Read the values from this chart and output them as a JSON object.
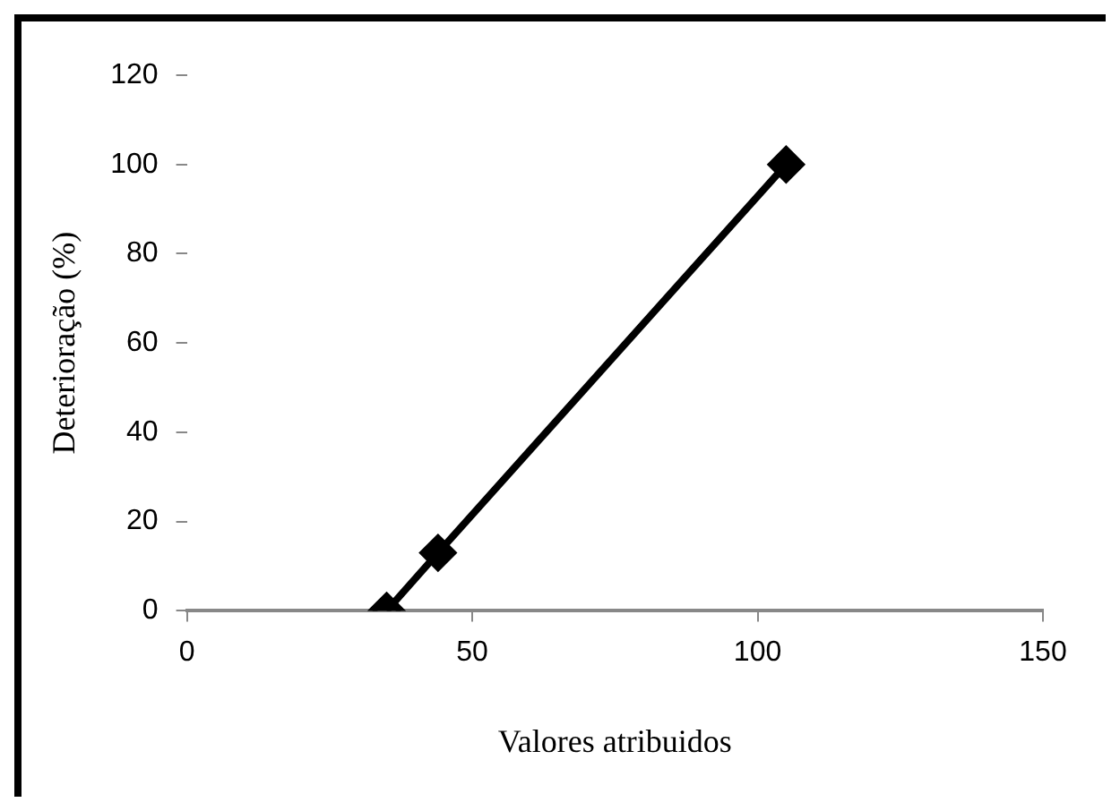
{
  "chart_data": {
    "type": "line",
    "xlabel": "Valores atribuidos",
    "ylabel": "Deterioração (%)",
    "x": [
      35,
      44,
      105
    ],
    "series": [
      {
        "color": "#000000",
        "values": [
          0,
          13,
          100
        ]
      }
    ],
    "xlim": [
      0,
      150
    ],
    "xticks": [
      0,
      50,
      100,
      150
    ],
    "ylim": [
      0,
      120
    ],
    "yticks": [
      0,
      20,
      40,
      60,
      80,
      100,
      120
    ],
    "grid": false,
    "legend": false,
    "marker": "diamond",
    "line_style": "solid"
  }
}
